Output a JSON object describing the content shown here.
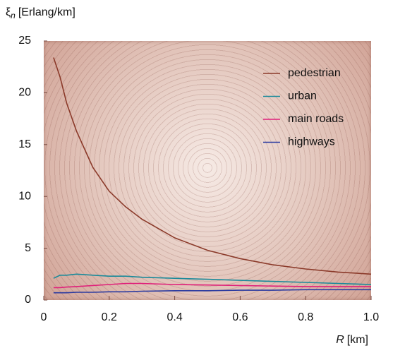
{
  "chart_data": {
    "type": "line",
    "y_label_symbol": "ξ",
    "y_label_subscript": "n",
    "y_label_unit": "[Erlang/km]",
    "x_label_symbol": "R",
    "x_label_unit": "[km]",
    "x": [
      0.03,
      0.05,
      0.07,
      0.1,
      0.15,
      0.2,
      0.25,
      0.3,
      0.4,
      0.5,
      0.6,
      0.7,
      0.8,
      0.9,
      1.0
    ],
    "series": [
      {
        "name": "pedestrian",
        "color": "#8b3a2a",
        "values": [
          23.4,
          21.5,
          19.0,
          16.3,
          12.8,
          10.5,
          9.0,
          7.8,
          6.0,
          4.8,
          4.0,
          3.4,
          3.0,
          2.7,
          2.5
        ]
      },
      {
        "name": "urban",
        "color": "#1a8a9a",
        "values": [
          2.1,
          2.4,
          2.4,
          2.5,
          2.4,
          2.3,
          2.3,
          2.2,
          2.1,
          2.0,
          1.9,
          1.8,
          1.7,
          1.6,
          1.5
        ]
      },
      {
        "name": "main roads",
        "color": "#e0207a",
        "values": [
          1.2,
          1.2,
          1.25,
          1.3,
          1.4,
          1.5,
          1.6,
          1.6,
          1.5,
          1.45,
          1.4,
          1.35,
          1.3,
          1.3,
          1.3
        ]
      },
      {
        "name": "highways",
        "color": "#2a3aa0",
        "values": [
          0.7,
          0.7,
          0.7,
          0.75,
          0.75,
          0.8,
          0.8,
          0.85,
          0.9,
          0.9,
          0.95,
          0.95,
          1.0,
          1.0,
          1.0
        ]
      }
    ],
    "xlim": [
      0,
      1
    ],
    "xticks": [
      0,
      0.2,
      0.4,
      0.6,
      0.8,
      {
        "value": 1,
        "label": "1.0"
      }
    ],
    "ylim": [
      0,
      25
    ],
    "yticks": [
      0,
      5,
      10,
      15,
      20,
      25
    ],
    "legend": "upper right"
  }
}
